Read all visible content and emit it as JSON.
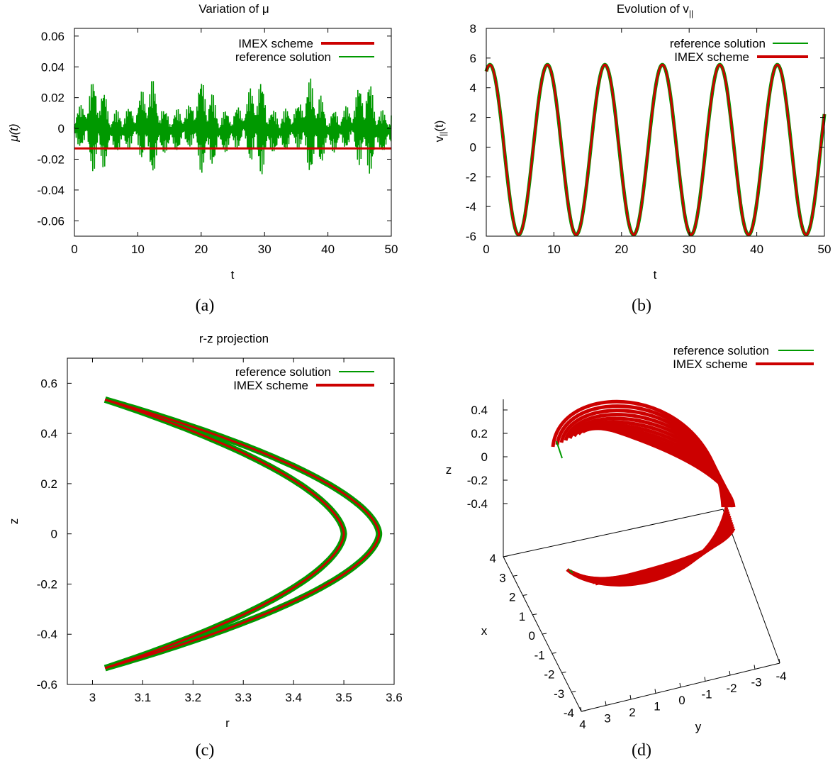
{
  "chart_data": [
    {
      "id": "a",
      "type": "line",
      "title": "Variation of μ",
      "xlabel": "t",
      "ylabel": "μ(t)",
      "caption": "(a)",
      "xlim": [
        0,
        50
      ],
      "ylim": [
        -0.07,
        0.065
      ],
      "xticks": [
        "0",
        "10",
        "20",
        "30",
        "40",
        "50"
      ],
      "yticks": [
        "-0.06",
        "-0.04",
        "-0.02",
        "0",
        "0.02",
        "0.04",
        "0.06"
      ],
      "legend_position": "top-right",
      "series": [
        {
          "name": "IMEX scheme",
          "color": "#cc0000",
          "description_values": {
            "x": [
              0,
              50
            ],
            "y": [
              -0.013,
              -0.013
            ]
          }
        },
        {
          "name": "reference solution",
          "color": "#009900",
          "description_values": {
            "envelope_center": 0.0,
            "max_amplitude": 0.035,
            "min_value": -0.033,
            "slow_period": 8.5
          }
        }
      ]
    },
    {
      "id": "b",
      "type": "line",
      "title": "Evolution of v",
      "title_sub": "||",
      "xlabel": "t",
      "ylabel": "v",
      "ylabel_sub": "||",
      "ylabel_suffix": "(t)",
      "caption": "(b)",
      "xlim": [
        0,
        50
      ],
      "ylim": [
        -6,
        8
      ],
      "xticks": [
        "0",
        "10",
        "20",
        "30",
        "40",
        "50"
      ],
      "yticks": [
        "-6",
        "-4",
        "-2",
        "0",
        "2",
        "4",
        "6",
        "8"
      ],
      "legend_position": "top-right",
      "series": [
        {
          "name": "reference solution",
          "color": "#009900"
        },
        {
          "name": "IMEX scheme",
          "color": "#cc0000"
        }
      ],
      "oscillation": {
        "period": 8.5,
        "max": 5.55,
        "min": -5.9,
        "start": 5.1
      }
    },
    {
      "id": "c",
      "type": "line",
      "title": "r-z projection",
      "xlabel": "r",
      "ylabel": "z",
      "caption": "(c)",
      "xlim": [
        2.95,
        3.6
      ],
      "ylim": [
        -0.6,
        0.7
      ],
      "xticks": [
        "3",
        "3.1",
        "3.2",
        "3.3",
        "3.4",
        "3.5",
        "3.6"
      ],
      "yticks": [
        "-0.6",
        "-0.4",
        "-0.2",
        "0",
        "0.2",
        "0.4",
        "0.6"
      ],
      "legend_position": "top-right",
      "series": [
        {
          "name": "reference solution",
          "color": "#009900"
        },
        {
          "name": "IMEX scheme",
          "color": "#cc0000"
        }
      ],
      "curves": {
        "tip_r": 3.025,
        "tip_z": 0.535,
        "outer_nose_r": 3.57,
        "inner_nose_r": 3.5
      }
    },
    {
      "id": "d",
      "type": "line",
      "title": "",
      "xlabel": "x",
      "ylabel": "y",
      "zlabel": "z",
      "caption": "(d)",
      "zticks": [
        "0.4",
        "0.2",
        "0",
        "-0.2",
        "-0.4"
      ],
      "xticks": [
        "4",
        "3",
        "2",
        "1",
        "0",
        "-1",
        "-2",
        "-3",
        "-4"
      ],
      "yticks": [
        "4",
        "3",
        "2",
        "1",
        "0",
        "-1",
        "-2",
        "-3",
        "-4"
      ],
      "legend_position": "top-right",
      "series": [
        {
          "name": "reference solution",
          "color": "#009900"
        },
        {
          "name": "IMEX scheme",
          "color": "#cc0000"
        }
      ]
    }
  ]
}
